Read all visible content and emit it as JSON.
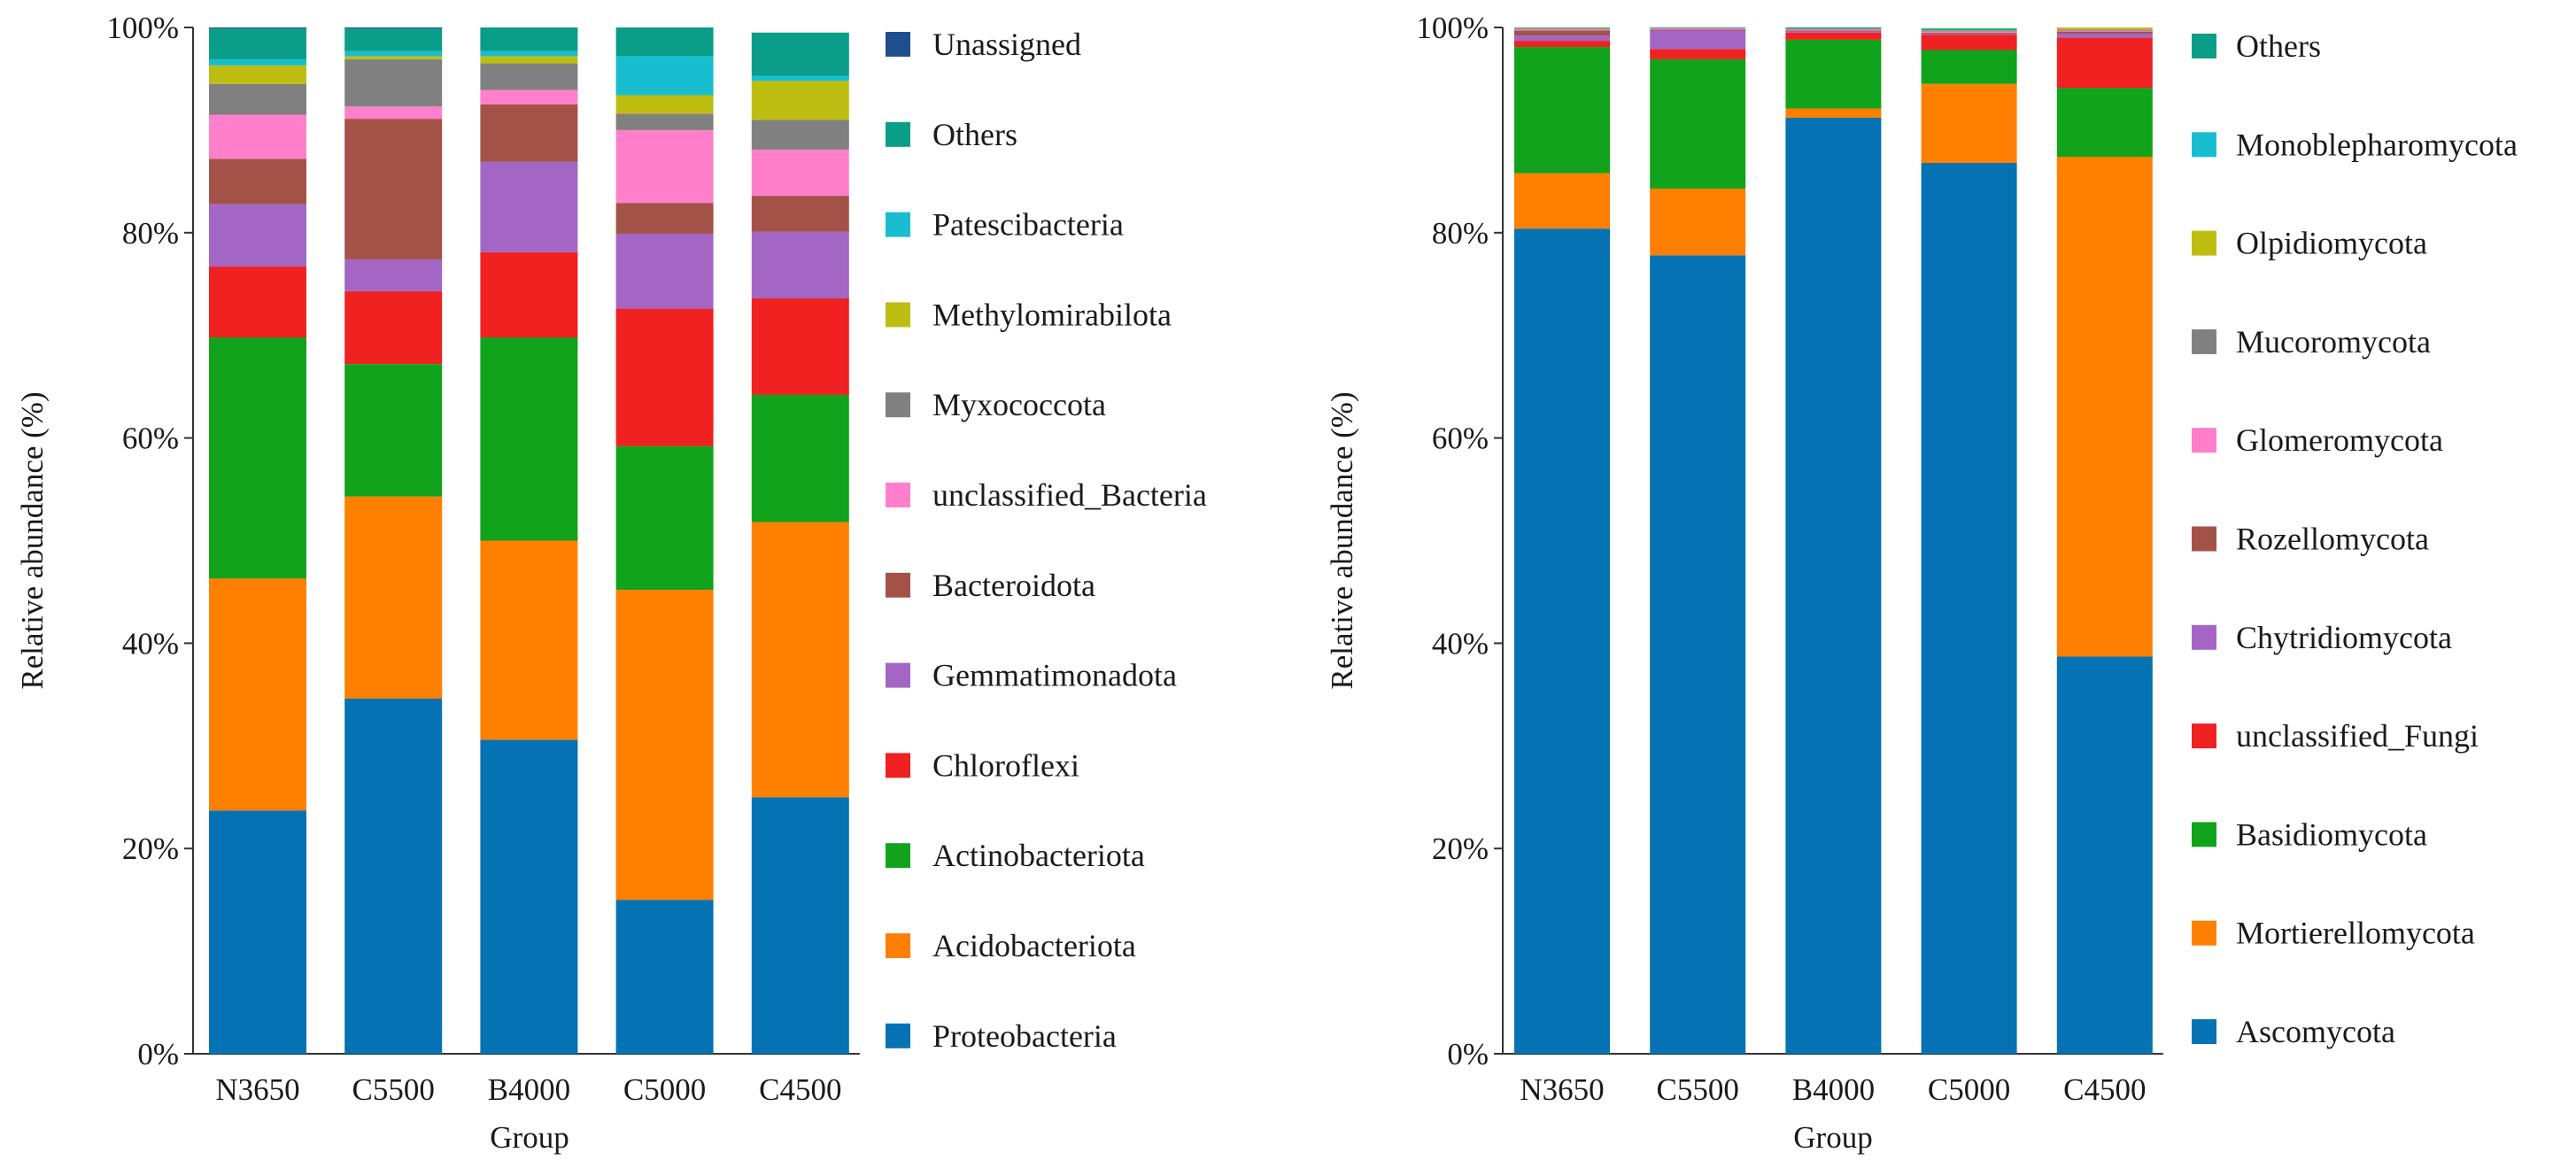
{
  "chart_data": [
    {
      "type": "bar",
      "stacked": true,
      "title": "",
      "xlabel": "Group",
      "ylabel": "Relative abundance (%)",
      "ylim": [
        0,
        100
      ],
      "yticks": [
        "0%",
        "20%",
        "40%",
        "60%",
        "80%",
        "100%"
      ],
      "legend_position": "right",
      "categories": [
        "N3650",
        "C5500",
        "B4000",
        "C5000",
        "C4500"
      ],
      "series": [
        {
          "name": "Proteobacteria",
          "color": "#0572b3",
          "values": [
            23.7,
            34.6,
            30.6,
            15.0,
            25.0
          ]
        },
        {
          "name": "Acidobacteriota",
          "color": "#ff7f00",
          "values": [
            22.6,
            19.7,
            19.4,
            30.2,
            26.8
          ]
        },
        {
          "name": "Actinobacteriota",
          "color": "#11a31b",
          "values": [
            23.5,
            12.9,
            19.8,
            14.0,
            12.4
          ]
        },
        {
          "name": "Chloroflexi",
          "color": "#ef2121",
          "values": [
            6.9,
            7.1,
            8.3,
            13.4,
            9.4
          ]
        },
        {
          "name": "Gemmatimonadota",
          "color": "#a366c4",
          "values": [
            6.1,
            3.1,
            8.8,
            7.3,
            6.5
          ]
        },
        {
          "name": "Bacteroidota",
          "color": "#a35248",
          "values": [
            4.4,
            13.7,
            5.6,
            3.0,
            3.5
          ]
        },
        {
          "name": "unclassified_Bacteria",
          "color": "#ff7fcb",
          "values": [
            4.3,
            1.2,
            1.4,
            7.1,
            4.5
          ]
        },
        {
          "name": "Myxococcota",
          "color": "#808080",
          "values": [
            3.0,
            4.6,
            2.6,
            1.6,
            2.9
          ]
        },
        {
          "name": "Methylomirabilota",
          "color": "#bebe12",
          "values": [
            1.8,
            0.3,
            0.7,
            1.8,
            3.8
          ]
        },
        {
          "name": "Patescibacteria",
          "color": "#18becf",
          "values": [
            0.6,
            0.5,
            0.5,
            3.8,
            0.5
          ]
        },
        {
          "name": "Others",
          "color": "#0a9d87",
          "values": [
            3.0,
            2.2,
            2.3,
            2.8,
            4.2
          ]
        },
        {
          "name": "Unassigned",
          "color": "#1f4e8e",
          "values": [
            0.1,
            0.1,
            0.0,
            0.0,
            0.0
          ]
        }
      ]
    },
    {
      "type": "bar",
      "stacked": true,
      "title": "",
      "xlabel": "Group",
      "ylabel": "Relative abundance (%)",
      "ylim": [
        0,
        100
      ],
      "yticks": [
        "0%",
        "20%",
        "40%",
        "60%",
        "80%",
        "100%"
      ],
      "legend_position": "right",
      "categories": [
        "N3650",
        "C5500",
        "B4000",
        "C5000",
        "C4500"
      ],
      "series": [
        {
          "name": "Ascomycota",
          "color": "#0572b3",
          "values": [
            80.4,
            77.8,
            91.2,
            86.8,
            38.7
          ]
        },
        {
          "name": "Mortierellomycota",
          "color": "#ff7f00",
          "values": [
            5.4,
            6.5,
            0.9,
            7.7,
            48.7
          ]
        },
        {
          "name": "Basidiomycota",
          "color": "#11a31b",
          "values": [
            12.3,
            12.6,
            6.7,
            3.3,
            6.7
          ]
        },
        {
          "name": "unclassified_Fungi",
          "color": "#ef2121",
          "values": [
            0.6,
            1.0,
            0.7,
            1.5,
            4.9
          ]
        },
        {
          "name": "Chytridiomycota",
          "color": "#a366c4",
          "values": [
            0.5,
            1.8,
            0.1,
            0.1,
            0.4
          ]
        },
        {
          "name": "Rozellomycota",
          "color": "#a35248",
          "values": [
            0.5,
            0.1,
            0.1,
            0.1,
            0.2
          ]
        },
        {
          "name": "Glomeromycota",
          "color": "#ff7fcb",
          "values": [
            0.1,
            0.1,
            0.1,
            0.1,
            0.1
          ]
        },
        {
          "name": "Mucoromycota",
          "color": "#808080",
          "values": [
            0.1,
            0.05,
            0.1,
            0.1,
            0.1
          ]
        },
        {
          "name": "Olpidiomycota",
          "color": "#bebe12",
          "values": [
            0.05,
            0.0,
            0.0,
            0.05,
            0.2
          ]
        },
        {
          "name": "Monoblepharomycota",
          "color": "#18becf",
          "values": [
            0.0,
            0.0,
            0.0,
            0.0,
            0.0
          ]
        },
        {
          "name": "Others",
          "color": "#0a9d87",
          "values": [
            0.05,
            0.05,
            0.1,
            0.15,
            0.0
          ]
        }
      ]
    }
  ]
}
